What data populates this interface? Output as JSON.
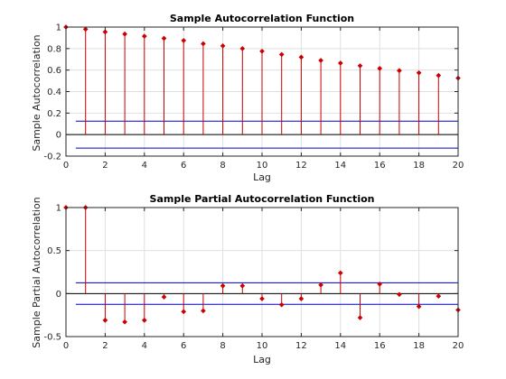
{
  "chart_data": [
    {
      "type": "stem",
      "title": "Sample Autocorrelation Function",
      "xlabel": "Lag",
      "ylabel": "Sample Autocorrelation",
      "xlim": [
        0,
        20
      ],
      "ylim": [
        -0.2,
        1
      ],
      "xticks": [
        0,
        2,
        4,
        6,
        8,
        10,
        12,
        14,
        16,
        18,
        20
      ],
      "yticks": [
        -0.2,
        0,
        0.2,
        0.4,
        0.6,
        0.8,
        1
      ],
      "ytick_labels": [
        "-0.2",
        "0",
        "0.2",
        "0.4",
        "0.6",
        "0.8",
        "1"
      ],
      "grid": true,
      "x": [
        0,
        1,
        2,
        3,
        4,
        5,
        6,
        7,
        8,
        9,
        10,
        11,
        12,
        13,
        14,
        15,
        16,
        17,
        18,
        19,
        20
      ],
      "values": [
        1.0,
        0.98,
        0.955,
        0.935,
        0.915,
        0.895,
        0.875,
        0.845,
        0.825,
        0.8,
        0.775,
        0.745,
        0.72,
        0.69,
        0.665,
        0.64,
        0.615,
        0.595,
        0.575,
        0.55,
        0.525
      ],
      "confidence_bounds": [
        0.125,
        -0.125
      ],
      "colors": {
        "stem": "#cc0000",
        "bounds": "#0000cc",
        "zero": "#000000"
      }
    },
    {
      "type": "stem",
      "title": "Sample Partial Autocorrelation Function",
      "xlabel": "Lag",
      "ylabel": "Sample Partial Autocorrelation",
      "xlim": [
        0,
        20
      ],
      "ylim": [
        -0.5,
        1
      ],
      "xticks": [
        0,
        2,
        4,
        6,
        8,
        10,
        12,
        14,
        16,
        18,
        20
      ],
      "yticks": [
        -0.5,
        0,
        0.5,
        1
      ],
      "ytick_labels": [
        "-0.5",
        "0",
        "0.5",
        "1"
      ],
      "grid": true,
      "x": [
        0,
        1,
        2,
        3,
        4,
        5,
        6,
        7,
        8,
        9,
        10,
        11,
        12,
        13,
        14,
        15,
        16,
        17,
        18,
        19,
        20
      ],
      "values": [
        1.0,
        1.0,
        -0.31,
        -0.33,
        -0.31,
        -0.04,
        -0.21,
        -0.2,
        0.09,
        0.09,
        -0.06,
        -0.13,
        -0.06,
        0.1,
        0.24,
        -0.28,
        0.11,
        -0.01,
        -0.15,
        -0.03,
        -0.19
      ],
      "confidence_bounds": [
        0.125,
        -0.125
      ],
      "colors": {
        "stem": "#cc0000",
        "bounds": "#0000cc",
        "zero": "#000000"
      }
    }
  ]
}
